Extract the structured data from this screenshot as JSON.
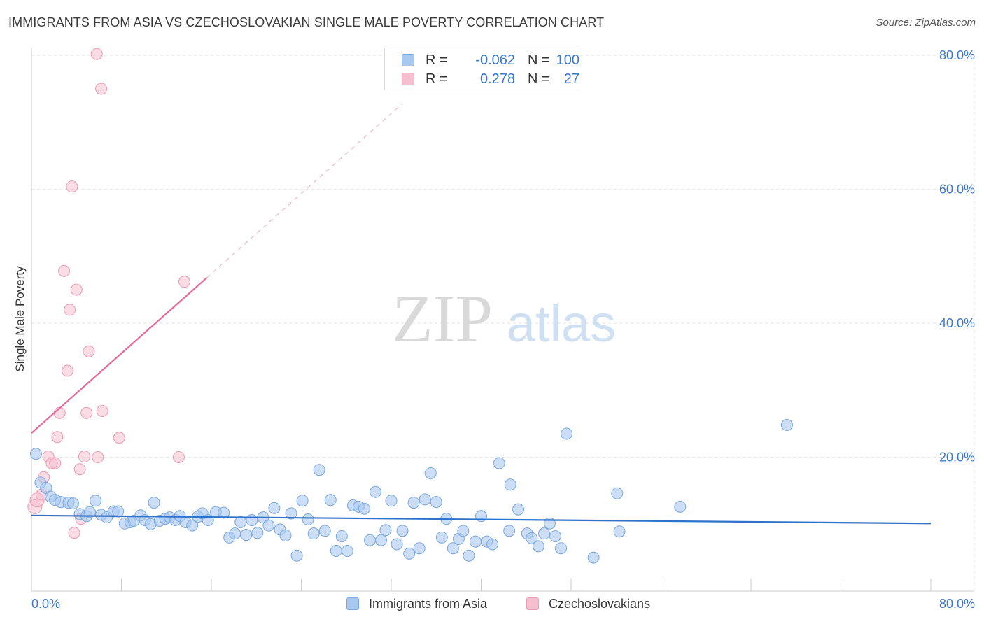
{
  "title": "IMMIGRANTS FROM ASIA VS CZECHOSLOVAKIAN SINGLE MALE POVERTY CORRELATION CHART",
  "source": "Source: ZipAtlas.com",
  "watermark": {
    "zip": "ZIP",
    "atlas": "atlas"
  },
  "legend": {
    "rows": [
      {
        "r_label": "R =",
        "r_value": "-0.062",
        "n_label": "N =",
        "n_value": "100"
      },
      {
        "r_label": "R =",
        "r_value": "0.278",
        "n_label": "N =",
        "n_value": "27"
      }
    ]
  },
  "bottom_legend": [
    {
      "label": "Immigrants from Asia"
    },
    {
      "label": "Czechoslovakians"
    }
  ],
  "colors": {
    "blue_fill": "#a9c8ef",
    "blue_stroke": "#7aa7df",
    "blue_line": "#2e72cc",
    "pink_fill": "#f5bfd0",
    "pink_stroke": "#ec9ab5",
    "pink_line": "#e5699a",
    "axis_label": "#3a78c9",
    "grid": "#e3e3e3"
  },
  "chart_data": {
    "type": "scatter",
    "title": "IMMIGRANTS FROM ASIA VS CZECHOSLOVAKIAN SINGLE MALE POVERTY CORRELATION CHART",
    "xlabel": "",
    "ylabel": "Single Male Poverty",
    "xlim": [
      0,
      80
    ],
    "ylim": [
      0,
      80
    ],
    "x_tick_labels": [
      "0.0%",
      "80.0%"
    ],
    "y_tick_values": [
      20,
      40,
      60,
      80
    ],
    "y_tick_labels": [
      "20.0%",
      "40.0%",
      "60.0%",
      "80.0%"
    ],
    "grid": true,
    "legend_position": "top-center",
    "series": [
      {
        "name": "Immigrants from Asia",
        "R": -0.062,
        "N": 100,
        "trend": {
          "x": [
            0,
            80
          ],
          "y": [
            11.3,
            10.1
          ]
        },
        "points": [
          [
            0.4,
            20.5
          ],
          [
            0.8,
            16.2
          ],
          [
            1.3,
            15.4
          ],
          [
            1.7,
            14.1
          ],
          [
            2.1,
            13.6
          ],
          [
            2.6,
            13.3
          ],
          [
            3.3,
            13.2
          ],
          [
            3.7,
            13.1
          ],
          [
            4.3,
            11.5
          ],
          [
            4.9,
            11.2
          ],
          [
            5.2,
            11.8
          ],
          [
            5.7,
            13.5
          ],
          [
            6.2,
            11.4
          ],
          [
            6.7,
            11.0
          ],
          [
            7.3,
            11.9
          ],
          [
            7.7,
            11.9
          ],
          [
            8.3,
            10.1
          ],
          [
            8.8,
            10.3
          ],
          [
            9.1,
            10.5
          ],
          [
            9.7,
            11.3
          ],
          [
            10.1,
            10.6
          ],
          [
            10.6,
            10.0
          ],
          [
            10.9,
            13.2
          ],
          [
            11.4,
            10.5
          ],
          [
            11.9,
            10.8
          ],
          [
            12.3,
            11.0
          ],
          [
            12.8,
            10.6
          ],
          [
            13.2,
            11.2
          ],
          [
            13.7,
            10.3
          ],
          [
            14.3,
            9.8
          ],
          [
            14.8,
            11.1
          ],
          [
            15.2,
            11.6
          ],
          [
            15.7,
            10.6
          ],
          [
            16.4,
            11.8
          ],
          [
            17.1,
            11.7
          ],
          [
            17.6,
            8.0
          ],
          [
            18.1,
            8.6
          ],
          [
            18.6,
            10.3
          ],
          [
            19.1,
            8.4
          ],
          [
            19.6,
            10.6
          ],
          [
            20.1,
            8.7
          ],
          [
            20.6,
            11.0
          ],
          [
            21.1,
            9.8
          ],
          [
            21.6,
            12.4
          ],
          [
            22.1,
            9.2
          ],
          [
            22.6,
            8.3
          ],
          [
            23.1,
            11.6
          ],
          [
            23.6,
            5.3
          ],
          [
            24.1,
            13.5
          ],
          [
            24.6,
            10.7
          ],
          [
            25.1,
            8.6
          ],
          [
            25.6,
            18.1
          ],
          [
            26.1,
            9.0
          ],
          [
            26.6,
            13.6
          ],
          [
            27.1,
            6.0
          ],
          [
            27.6,
            8.2
          ],
          [
            28.1,
            6.0
          ],
          [
            28.6,
            12.8
          ],
          [
            29.1,
            12.6
          ],
          [
            29.6,
            12.3
          ],
          [
            30.1,
            7.6
          ],
          [
            30.6,
            14.8
          ],
          [
            31.1,
            7.6
          ],
          [
            31.5,
            9.1
          ],
          [
            32.0,
            13.5
          ],
          [
            32.5,
            7.0
          ],
          [
            33.0,
            9.0
          ],
          [
            33.6,
            5.6
          ],
          [
            34.0,
            13.2
          ],
          [
            34.5,
            6.4
          ],
          [
            35.0,
            13.7
          ],
          [
            35.5,
            17.6
          ],
          [
            36.0,
            13.3
          ],
          [
            36.5,
            8.0
          ],
          [
            36.9,
            10.8
          ],
          [
            37.5,
            6.4
          ],
          [
            38.0,
            7.8
          ],
          [
            38.4,
            9.0
          ],
          [
            38.9,
            5.3
          ],
          [
            39.5,
            7.4
          ],
          [
            40.0,
            11.2
          ],
          [
            40.5,
            7.4
          ],
          [
            41.0,
            7.0
          ],
          [
            41.6,
            19.1
          ],
          [
            42.5,
            9.0
          ],
          [
            42.6,
            15.9
          ],
          [
            43.3,
            12.2
          ],
          [
            44.1,
            8.6
          ],
          [
            44.5,
            7.9
          ],
          [
            45.1,
            6.7
          ],
          [
            45.6,
            8.6
          ],
          [
            46.1,
            10.1
          ],
          [
            46.6,
            8.2
          ],
          [
            47.1,
            6.4
          ],
          [
            47.6,
            23.5
          ],
          [
            50.0,
            5.0
          ],
          [
            52.1,
            14.6
          ],
          [
            52.3,
            8.9
          ],
          [
            57.7,
            12.6
          ],
          [
            67.2,
            24.8
          ]
        ]
      },
      {
        "name": "Czechoslovakians",
        "R": 0.278,
        "N": 27,
        "trend": {
          "x": [
            0,
            15.6
          ],
          "y": [
            23.6,
            46.8
          ]
        },
        "trend_extension": {
          "x": [
            15.6,
            33.0
          ],
          "y": [
            46.8,
            72.8
          ]
        },
        "points": [
          [
            0.3,
            12.6
          ],
          [
            0.5,
            13.6
          ],
          [
            0.9,
            14.4
          ],
          [
            1.1,
            17.0
          ],
          [
            1.5,
            20.1
          ],
          [
            1.8,
            19.1
          ],
          [
            2.1,
            19.1
          ],
          [
            2.3,
            23.0
          ],
          [
            2.5,
            26.6
          ],
          [
            2.9,
            47.8
          ],
          [
            3.2,
            32.9
          ],
          [
            3.4,
            42.0
          ],
          [
            3.6,
            60.4
          ],
          [
            3.8,
            8.7
          ],
          [
            4.0,
            45.0
          ],
          [
            4.3,
            18.2
          ],
          [
            4.4,
            10.8
          ],
          [
            4.7,
            20.1
          ],
          [
            4.9,
            26.6
          ],
          [
            5.1,
            35.8
          ],
          [
            5.8,
            80.2
          ],
          [
            5.9,
            20.0
          ],
          [
            6.2,
            75.0
          ],
          [
            6.3,
            26.9
          ],
          [
            7.8,
            22.9
          ],
          [
            13.1,
            20.0
          ],
          [
            13.6,
            46.2
          ]
        ]
      }
    ]
  }
}
